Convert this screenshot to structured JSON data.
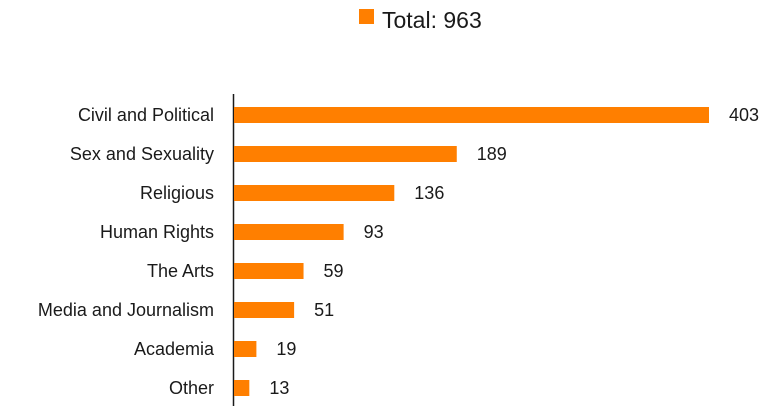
{
  "legend": {
    "label": "Total: 963",
    "color": "#ff7f00"
  },
  "chart_data": {
    "type": "bar",
    "orientation": "horizontal",
    "categories": [
      "Civil and Political",
      "Sex and Sexuality",
      "Religious",
      "Human Rights",
      "The Arts",
      "Media and Journalism",
      "Academia",
      "Other"
    ],
    "series": [
      {
        "name": "Total: 963",
        "values": [
          403,
          189,
          136,
          93,
          59,
          51,
          19,
          13
        ],
        "color": "#ff7f00"
      }
    ],
    "data_labels": [
      "403",
      "189",
      "136",
      "93",
      "59",
      "51",
      "19",
      "13"
    ],
    "title": "",
    "xlabel": "",
    "ylabel": "",
    "xlim": [
      0,
      403
    ],
    "grid": false,
    "legend_position": "top-center"
  }
}
